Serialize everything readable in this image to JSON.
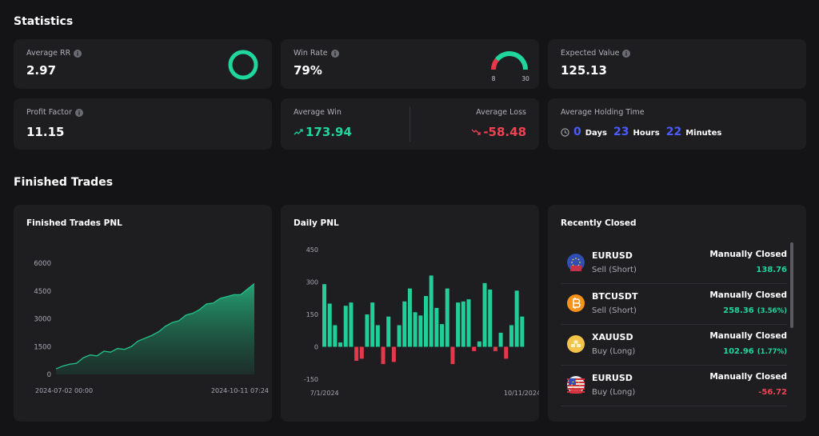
{
  "statistics": {
    "title": "Statistics",
    "average_rr": {
      "label": "Average RR",
      "value": "2.97"
    },
    "win_rate": {
      "label": "Win Rate",
      "value": "79%",
      "losses": 8,
      "wins": 30
    },
    "expected_value": {
      "label": "Expected Value",
      "value": "125.13"
    },
    "profit_factor": {
      "label": "Profit Factor",
      "value": "11.15"
    },
    "average_win": {
      "label": "Average Win",
      "value": "173.94"
    },
    "average_loss": {
      "label": "Average Loss",
      "value": "-58.48"
    },
    "holding_time": {
      "label": "Average Holding Time",
      "days": "0",
      "days_unit": "Days",
      "hours": "23",
      "hours_unit": "Hours",
      "minutes": "22",
      "minutes_unit": "Minutes"
    }
  },
  "finished_trades": {
    "title": "Finished Trades"
  },
  "chart_data": [
    {
      "type": "area",
      "title": "Finished Trades PNL",
      "color": "#22c58b",
      "categories": [
        "2024-07-02 00:00",
        null,
        null,
        null,
        null,
        null,
        null,
        null,
        null,
        null,
        null,
        null,
        null,
        null,
        null,
        null,
        null,
        null,
        null,
        null,
        null,
        null,
        null,
        null,
        null,
        null,
        null,
        null,
        null,
        "2024-10-11 07:24"
      ],
      "values": [
        300,
        450,
        550,
        600,
        900,
        1050,
        1000,
        1250,
        1200,
        1400,
        1350,
        1500,
        1800,
        1950,
        2100,
        2300,
        2600,
        2800,
        2900,
        3200,
        3300,
        3500,
        3800,
        3850,
        4100,
        4200,
        4300,
        4300,
        4600,
        4900
      ],
      "ylim": [
        0,
        6000
      ],
      "yticks": [
        0,
        1500,
        3000,
        4500,
        6000
      ]
    },
    {
      "type": "bar",
      "title": "Daily PNL",
      "color": "#1fcf97",
      "negative_color": "#e5384a",
      "categories": [
        "7/1/2024",
        null,
        null,
        null,
        null,
        null,
        null,
        null,
        null,
        null,
        null,
        null,
        null,
        null,
        null,
        null,
        null,
        null,
        null,
        null,
        null,
        null,
        null,
        null,
        null,
        null,
        null,
        null,
        null,
        null,
        null,
        null,
        null,
        null,
        null,
        null,
        null,
        "10/11/2024"
      ],
      "values": [
        290,
        200,
        100,
        20,
        190,
        205,
        -65,
        -55,
        150,
        205,
        100,
        -80,
        140,
        -70,
        100,
        210,
        270,
        160,
        145,
        235,
        330,
        180,
        105,
        270,
        -80,
        205,
        210,
        220,
        -20,
        25,
        295,
        265,
        -20,
        65,
        -55,
        100,
        260,
        140
      ],
      "ylim": [
        -150,
        450
      ],
      "yticks": [
        -150,
        0,
        150,
        300,
        450
      ]
    }
  ],
  "recently_closed": {
    "title": "Recently Closed",
    "items": [
      {
        "symbol": "EURUSD",
        "side": "Sell (Short)",
        "status": "Manually Closed",
        "amount": "138.76"
      },
      {
        "symbol": "BTCUSDT",
        "side": "Sell (Short)",
        "status": "Manually Closed",
        "amount": "258.36",
        "percent": "(3.56%)"
      },
      {
        "symbol": "XAUUSD",
        "side": "Buy (Long)",
        "status": "Manually Closed",
        "amount": "102.96",
        "percent": "(1.77%)"
      },
      {
        "symbol": "EURUSD",
        "side": "Buy (Long)",
        "status": "Manually Closed",
        "amount": "-56.72"
      }
    ]
  }
}
